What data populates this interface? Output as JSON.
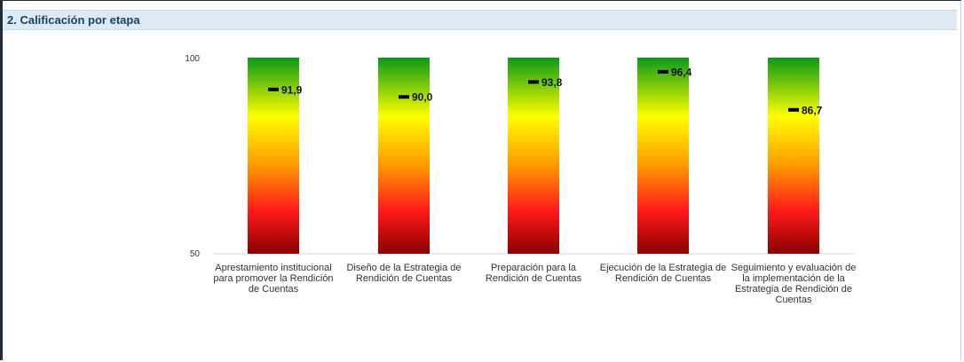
{
  "section": {
    "title": "2. Calificación por etapa"
  },
  "chart_data": {
    "type": "bar",
    "categories": [
      "Aprestamiento institucional para promover la Rendición de Cuentas",
      "Diseño de la Estrategia de Rendición de Cuentas",
      "Preparación para la Rendición de Cuentas",
      "Ejecución de la Estrategia de Rendición de Cuentas",
      "Seguimiento y evaluación de la implementación de la Estrategia de Rendición de Cuentas"
    ],
    "category_lines": [
      [
        "Aprestamiento institucional",
        "para promover la Rendición",
        "de Cuentas"
      ],
      [
        "Diseño de la Estrategia de",
        "Rendición de Cuentas"
      ],
      [
        "Preparación para la",
        "Rendición de Cuentas"
      ],
      [
        "Ejecución de la Estrategia de",
        "Rendición de Cuentas"
      ],
      [
        "Seguimiento y evaluación de",
        "la implementación de la",
        "Estrategia de Rendición de",
        "Cuentas"
      ]
    ],
    "values": [
      91.9,
      90.0,
      93.8,
      96.4,
      86.7
    ],
    "value_labels": [
      "91,9",
      "90,0",
      "93,8",
      "96,4",
      "86,7"
    ],
    "ylim": [
      50,
      100
    ],
    "yticks": [
      "50",
      "100"
    ],
    "band": {
      "description_colors": [
        "#0a9a19",
        "#ffff00",
        "#ff9900",
        "#ff1a1a",
        "#8b0000"
      ]
    },
    "marker_color": "#000000",
    "grid": false,
    "title": "",
    "xlabel": "",
    "ylabel": ""
  }
}
